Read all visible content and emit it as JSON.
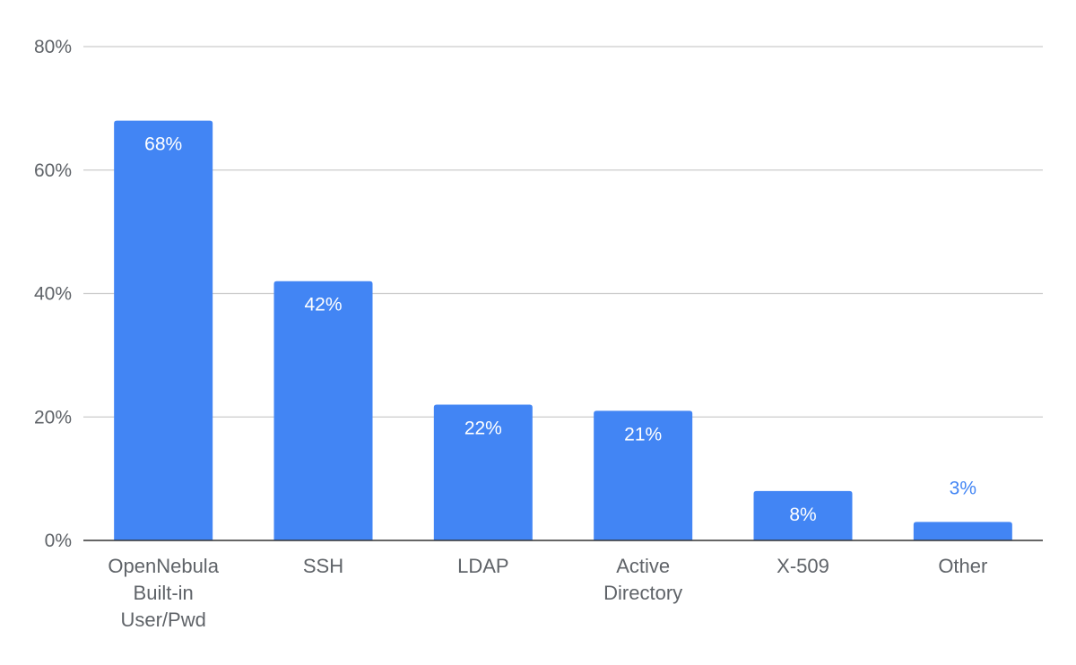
{
  "colors": {
    "bar": "#4285f4",
    "grid": "#cccccc",
    "axis": "#333333",
    "label_inside": "#ffffff",
    "label_outside": "#4285f4",
    "text": "#5f6368"
  },
  "chart_data": {
    "type": "bar",
    "title": "",
    "xlabel": "",
    "ylabel": "",
    "categories": [
      [
        "OpenNebula",
        "Built-in",
        "User/Pwd"
      ],
      [
        "SSH"
      ],
      [
        "LDAP"
      ],
      [
        "Active",
        "Directory"
      ],
      [
        "X-509"
      ],
      [
        "Other"
      ]
    ],
    "values": [
      68,
      42,
      22,
      21,
      8,
      3
    ],
    "data_labels": [
      "68%",
      "42%",
      "22%",
      "21%",
      "8%",
      "3%"
    ],
    "ylim": [
      0,
      80
    ],
    "yticks": [
      {
        "value": 0,
        "label": "0%"
      },
      {
        "value": 20,
        "label": "20%"
      },
      {
        "value": 40,
        "label": "40%"
      },
      {
        "value": 60,
        "label": "60%"
      },
      {
        "value": 80,
        "label": "80%"
      }
    ],
    "grid": true,
    "legend": "none"
  }
}
